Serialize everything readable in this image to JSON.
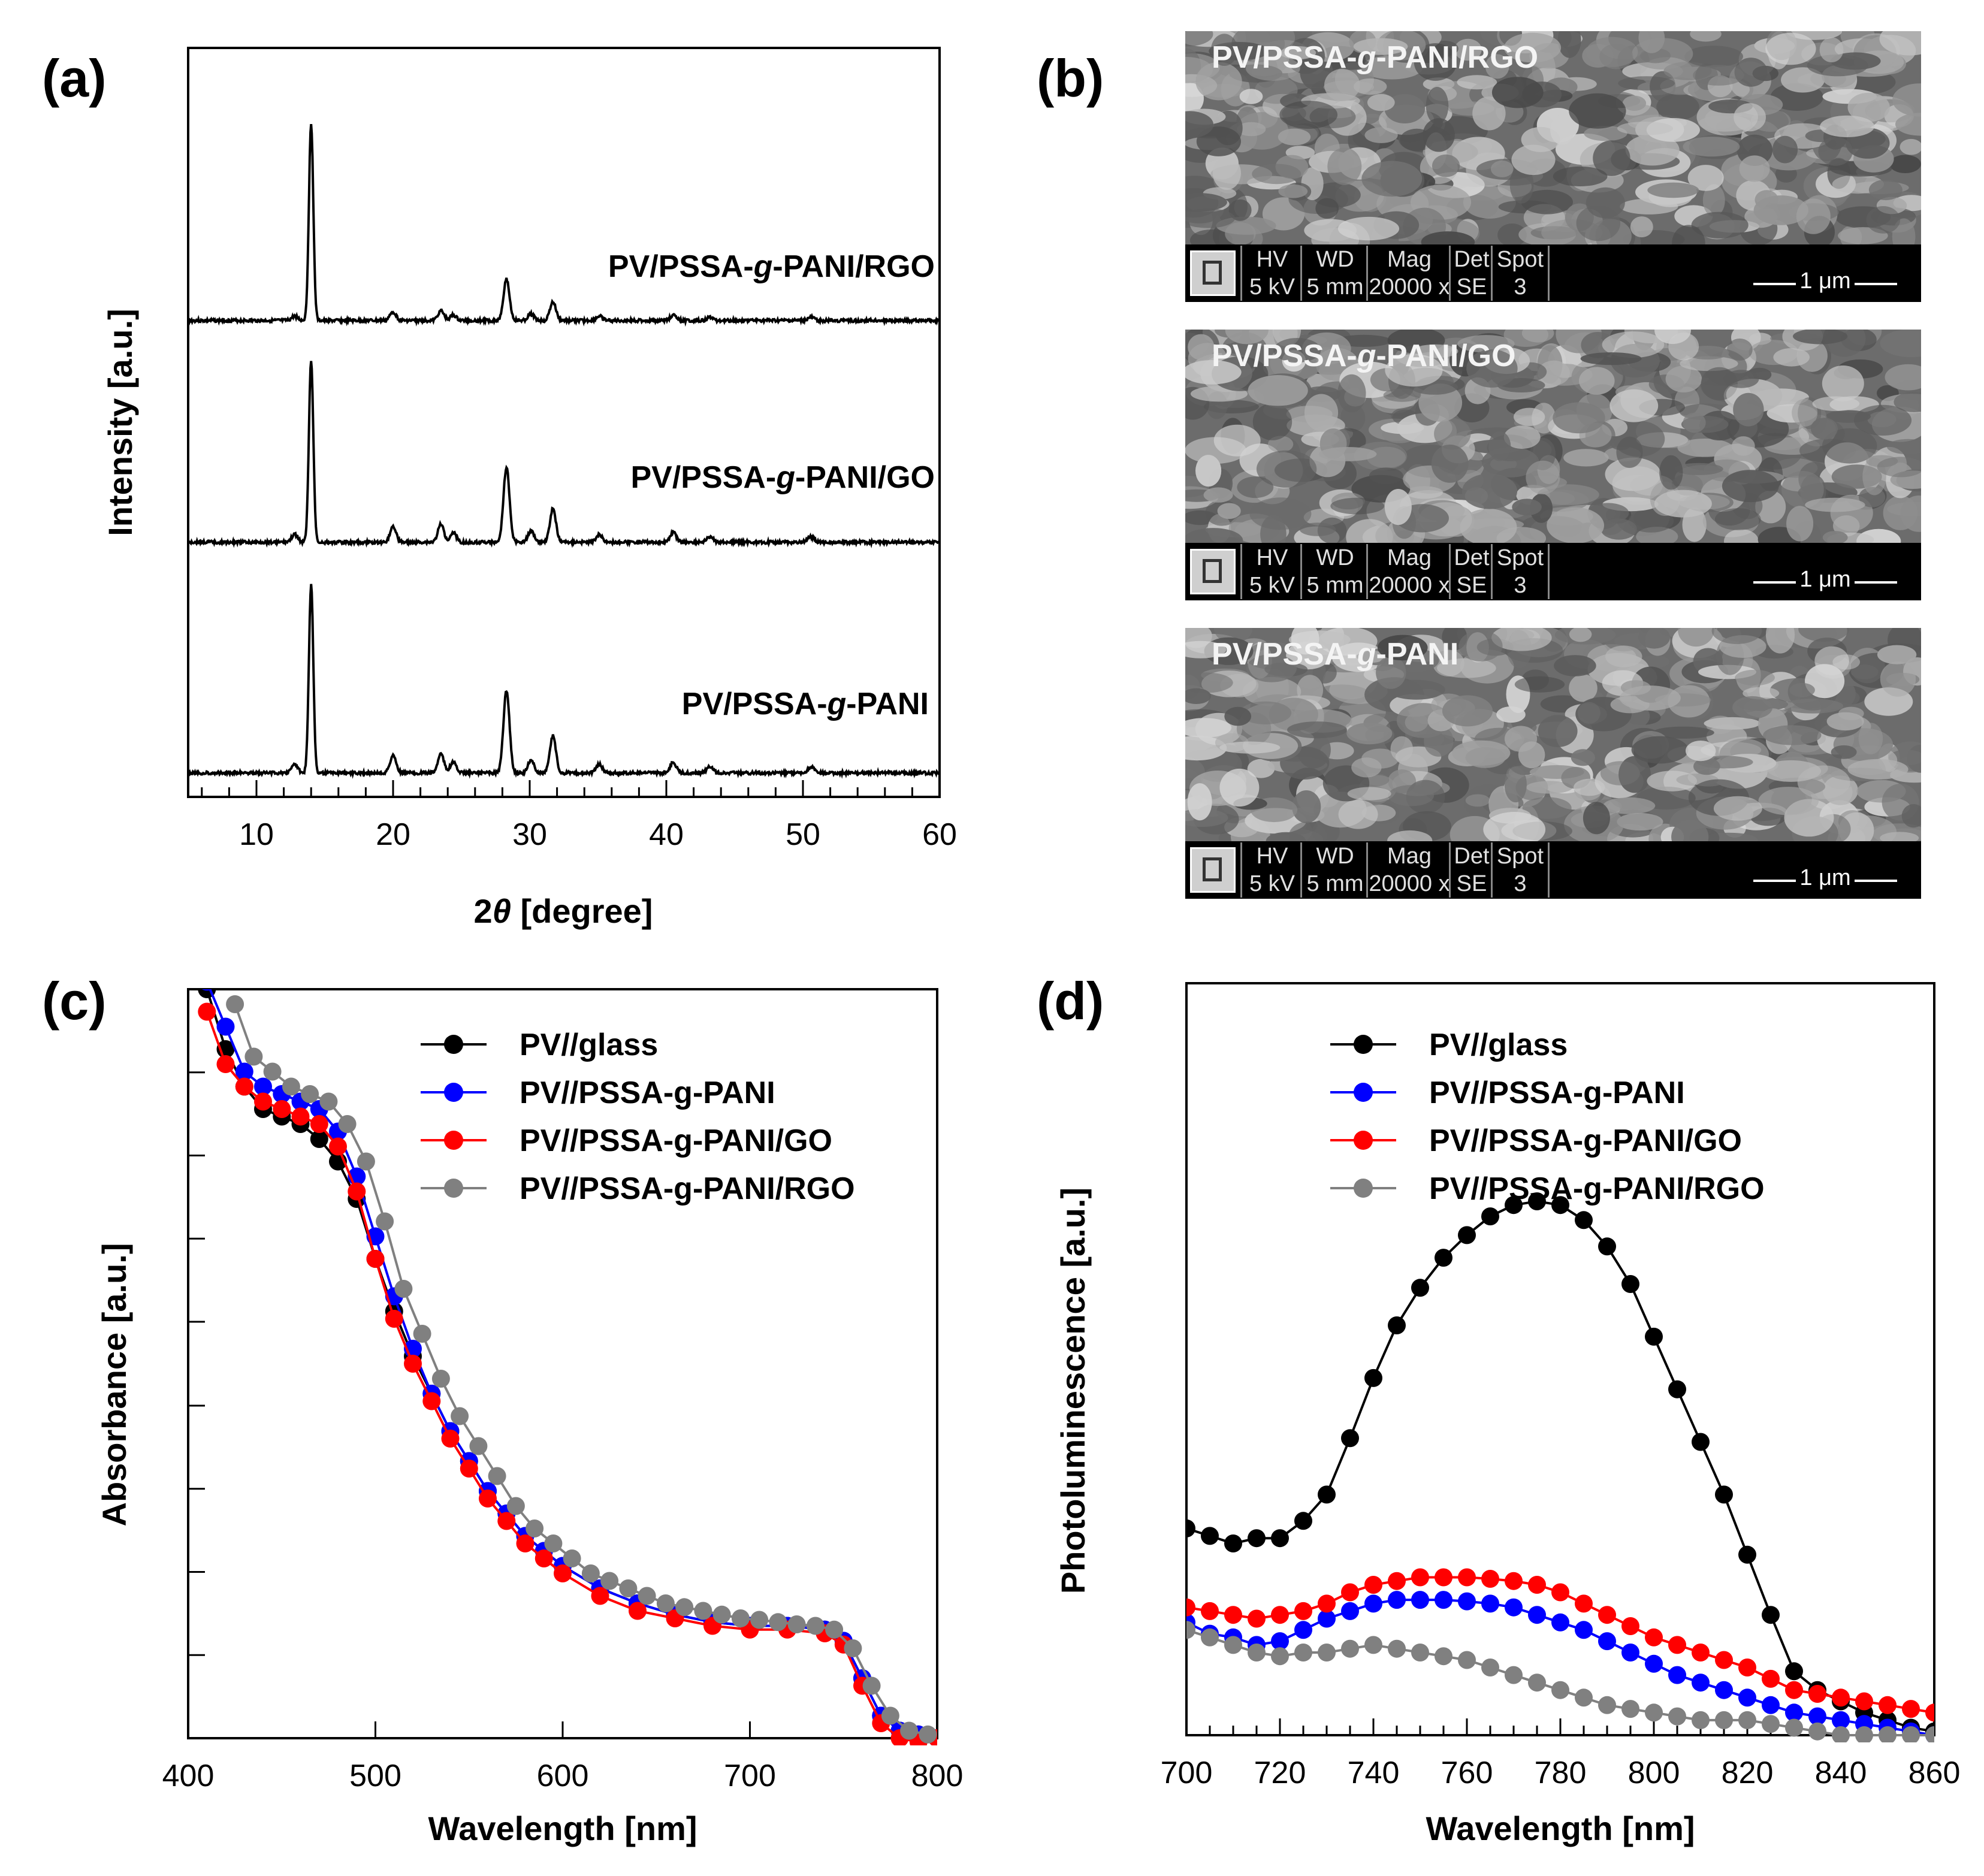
{
  "panels": {
    "a": "(a)",
    "b": "(b)",
    "c": "(c)",
    "d": "(d)"
  },
  "colors": {
    "black": "#000000",
    "blue": "#0000ff",
    "red": "#ff0000",
    "gray": "#808080"
  },
  "sem": {
    "headers": [
      "HV",
      "WD",
      "Mag",
      "Det",
      "Spot"
    ],
    "values": [
      "5 kV",
      "5 mm",
      "20000 x",
      "SE",
      "3"
    ],
    "scale": "1 μm",
    "images": [
      {
        "label": "PV/PSSA-g-PANI/RGO",
        "label_pre": "PV/PSSA-",
        "label_g": "g",
        "label_post": "-PANI/RGO"
      },
      {
        "label": "PV/PSSA-g-PANI/GO",
        "label_pre": "PV/PSSA-",
        "label_g": "g",
        "label_post": "-PANI/GO"
      },
      {
        "label": "PV/PSSA-g-PANI",
        "label_pre": "PV/PSSA-",
        "label_g": "g",
        "label_post": "-PANI"
      }
    ]
  },
  "chart_data": [
    {
      "id": "a",
      "type": "line",
      "title": "",
      "xlabel_num": "2",
      "xlabel_sym": "θ",
      "xlabel_unit": " [degree]",
      "ylabel": "Intensity [a.u.]",
      "xlim": [
        5,
        60
      ],
      "xticks": [
        10,
        20,
        30,
        40,
        50,
        60
      ],
      "peaks": [
        {
          "x": 12.8,
          "h": 0.04
        },
        {
          "x": 14.0,
          "h": 1.0
        },
        {
          "x": 20.0,
          "h": 0.08
        },
        {
          "x": 23.5,
          "h": 0.09
        },
        {
          "x": 24.4,
          "h": 0.05
        },
        {
          "x": 28.3,
          "h": 0.38
        },
        {
          "x": 30.1,
          "h": 0.06
        },
        {
          "x": 31.7,
          "h": 0.17
        },
        {
          "x": 35.1,
          "h": 0.04
        },
        {
          "x": 40.5,
          "h": 0.05
        },
        {
          "x": 43.2,
          "h": 0.03
        },
        {
          "x": 50.6,
          "h": 0.03
        }
      ],
      "series": [
        {
          "name": "PV/PSSA-g-PANI/RGO",
          "label_pre": "PV/PSSA-",
          "label_g": "g",
          "label_post": "-PANI/RGO",
          "offset": 2,
          "scale": 1.0,
          "minor": 0.55
        },
        {
          "name": "PV/PSSA-g-PANI/GO",
          "label_pre": "PV/PSSA-",
          "label_g": "g",
          "label_post": "-PANI/GO",
          "offset": 1,
          "scale": 0.92,
          "minor": 1.0
        },
        {
          "name": "PV/PSSA-g-PANI",
          "label_pre": "PV/PSSA-",
          "label_g": "g",
          "label_post": "-PANI",
          "offset": 0,
          "scale": 0.95,
          "minor": 1.1
        }
      ]
    },
    {
      "id": "c",
      "type": "line",
      "xlabel": "Wavelength [nm]",
      "ylabel": "Absorbance [a.u.]",
      "xlim": [
        400,
        800
      ],
      "ylim": [
        0,
        1
      ],
      "xticks": [
        400,
        500,
        600,
        700,
        800
      ],
      "yticks": [
        0.111,
        0.222,
        0.333,
        0.444,
        0.556,
        0.667,
        0.778,
        0.889
      ],
      "series": [
        {
          "name": "PV//glass",
          "color": "#000000",
          "x": [
            410,
            420,
            430,
            440,
            450,
            460,
            470,
            480,
            490,
            500,
            510,
            520,
            530,
            540,
            550,
            560,
            570,
            580,
            590,
            600,
            620,
            640,
            660,
            680,
            700,
            720,
            740,
            750,
            760,
            770,
            780,
            790,
            800
          ],
          "y": [
            1.0,
            0.92,
            0.87,
            0.84,
            0.83,
            0.82,
            0.8,
            0.77,
            0.72,
            0.64,
            0.57,
            0.51,
            0.46,
            0.41,
            0.37,
            0.33,
            0.3,
            0.27,
            0.25,
            0.23,
            0.2,
            0.18,
            0.165,
            0.155,
            0.15,
            0.15,
            0.145,
            0.13,
            0.08,
            0.03,
            0.01,
            0.005,
            0.0
          ]
        },
        {
          "name": "PV//PSSA-g-PANI",
          "color": "#0000ff",
          "x": [
            410,
            420,
            430,
            440,
            450,
            460,
            470,
            480,
            490,
            500,
            510,
            520,
            530,
            540,
            550,
            560,
            570,
            580,
            590,
            600,
            620,
            640,
            660,
            680,
            700,
            720,
            740,
            750,
            760,
            770,
            780,
            790,
            800
          ],
          "y": [
            1.01,
            0.95,
            0.89,
            0.87,
            0.86,
            0.85,
            0.84,
            0.81,
            0.75,
            0.67,
            0.59,
            0.52,
            0.46,
            0.41,
            0.37,
            0.33,
            0.3,
            0.27,
            0.25,
            0.23,
            0.2,
            0.18,
            0.165,
            0.155,
            0.15,
            0.15,
            0.145,
            0.13,
            0.08,
            0.03,
            0.01,
            0.005,
            0.0
          ]
        },
        {
          "name": "PV//PSSA-g-PANI/GO",
          "color": "#ff0000",
          "x": [
            410,
            420,
            430,
            440,
            450,
            460,
            470,
            480,
            490,
            500,
            510,
            520,
            530,
            540,
            550,
            560,
            570,
            580,
            590,
            600,
            620,
            640,
            660,
            680,
            700,
            720,
            740,
            750,
            760,
            770,
            780,
            790,
            800
          ],
          "y": [
            0.97,
            0.9,
            0.87,
            0.85,
            0.84,
            0.83,
            0.82,
            0.79,
            0.73,
            0.64,
            0.56,
            0.5,
            0.45,
            0.4,
            0.36,
            0.32,
            0.29,
            0.26,
            0.24,
            0.22,
            0.19,
            0.17,
            0.16,
            0.15,
            0.145,
            0.145,
            0.14,
            0.125,
            0.07,
            0.02,
            0.0,
            -0.005,
            0.0
          ]
        },
        {
          "name": "PV//PSSA-g-PANI/RGO",
          "color": "#808080",
          "x": [
            425,
            435,
            445,
            455,
            465,
            475,
            485,
            495,
            505,
            515,
            525,
            535,
            545,
            555,
            565,
            575,
            585,
            595,
            605,
            615,
            625,
            635,
            645,
            655,
            665,
            675,
            685,
            695,
            705,
            715,
            725,
            735,
            745,
            755,
            765,
            775,
            785,
            795
          ],
          "y": [
            0.98,
            0.91,
            0.89,
            0.87,
            0.86,
            0.85,
            0.82,
            0.77,
            0.69,
            0.6,
            0.54,
            0.48,
            0.43,
            0.39,
            0.35,
            0.31,
            0.28,
            0.26,
            0.24,
            0.22,
            0.21,
            0.2,
            0.19,
            0.18,
            0.175,
            0.17,
            0.165,
            0.16,
            0.158,
            0.155,
            0.152,
            0.15,
            0.145,
            0.12,
            0.07,
            0.03,
            0.01,
            0.005
          ]
        }
      ]
    },
    {
      "id": "d",
      "type": "line",
      "xlabel": "Wavelength [nm]",
      "ylabel": "Photoluminescence [a.u.]",
      "xlim": [
        700,
        860
      ],
      "ylim": [
        0,
        1
      ],
      "xticks": [
        700,
        720,
        740,
        760,
        780,
        800,
        820,
        840,
        860
      ],
      "series": [
        {
          "name": "PV//glass",
          "color": "#000000",
          "x": [
            700,
            705,
            710,
            715,
            720,
            725,
            730,
            735,
            740,
            745,
            750,
            755,
            760,
            765,
            770,
            775,
            780,
            785,
            790,
            795,
            800,
            805,
            810,
            815,
            820,
            825,
            830,
            835,
            840,
            845,
            850,
            855,
            860
          ],
          "y": [
            0.275,
            0.265,
            0.255,
            0.262,
            0.262,
            0.285,
            0.32,
            0.395,
            0.475,
            0.545,
            0.595,
            0.635,
            0.665,
            0.69,
            0.705,
            0.71,
            0.705,
            0.685,
            0.65,
            0.6,
            0.53,
            0.46,
            0.39,
            0.32,
            0.24,
            0.16,
            0.085,
            0.06,
            0.045,
            0.03,
            0.02,
            0.01,
            0.005
          ]
        },
        {
          "name": "PV//PSSA-g-PANI",
          "color": "#0000ff",
          "x": [
            700,
            705,
            710,
            715,
            720,
            725,
            730,
            735,
            740,
            745,
            750,
            755,
            760,
            765,
            770,
            775,
            780,
            785,
            790,
            795,
            800,
            805,
            810,
            815,
            820,
            825,
            830,
            835,
            840,
            845,
            850,
            855,
            860
          ],
          "y": [
            0.15,
            0.135,
            0.13,
            0.12,
            0.125,
            0.14,
            0.155,
            0.165,
            0.175,
            0.18,
            0.18,
            0.18,
            0.178,
            0.175,
            0.17,
            0.16,
            0.15,
            0.14,
            0.125,
            0.11,
            0.095,
            0.08,
            0.07,
            0.06,
            0.05,
            0.04,
            0.03,
            0.025,
            0.02,
            0.015,
            0.01,
            0.005,
            0.0
          ]
        },
        {
          "name": "PV//PSSA-g-PANI/GO",
          "color": "#ff0000",
          "x": [
            700,
            705,
            710,
            715,
            720,
            725,
            730,
            735,
            740,
            745,
            750,
            755,
            760,
            765,
            770,
            775,
            780,
            785,
            790,
            795,
            800,
            805,
            810,
            815,
            820,
            825,
            830,
            835,
            840,
            845,
            850,
            855,
            860
          ],
          "y": [
            0.17,
            0.165,
            0.16,
            0.155,
            0.16,
            0.165,
            0.175,
            0.19,
            0.2,
            0.205,
            0.21,
            0.21,
            0.21,
            0.208,
            0.205,
            0.2,
            0.19,
            0.175,
            0.16,
            0.145,
            0.13,
            0.12,
            0.11,
            0.1,
            0.09,
            0.075,
            0.06,
            0.055,
            0.05,
            0.045,
            0.04,
            0.035,
            0.03
          ]
        },
        {
          "name": "PV//PSSA-g-PANI/RGO",
          "color": "#808080",
          "x": [
            700,
            705,
            710,
            715,
            720,
            725,
            730,
            735,
            740,
            745,
            750,
            755,
            760,
            765,
            770,
            775,
            780,
            785,
            790,
            795,
            800,
            805,
            810,
            815,
            820,
            825,
            830,
            835,
            840,
            845,
            850,
            855,
            860
          ],
          "y": [
            0.14,
            0.13,
            0.12,
            0.11,
            0.105,
            0.11,
            0.11,
            0.115,
            0.12,
            0.115,
            0.11,
            0.105,
            0.1,
            0.09,
            0.08,
            0.07,
            0.06,
            0.05,
            0.04,
            0.035,
            0.03,
            0.025,
            0.02,
            0.02,
            0.02,
            0.015,
            0.01,
            0.005,
            0.0,
            0.0,
            0.0,
            0.0,
            0.0
          ]
        }
      ]
    }
  ]
}
